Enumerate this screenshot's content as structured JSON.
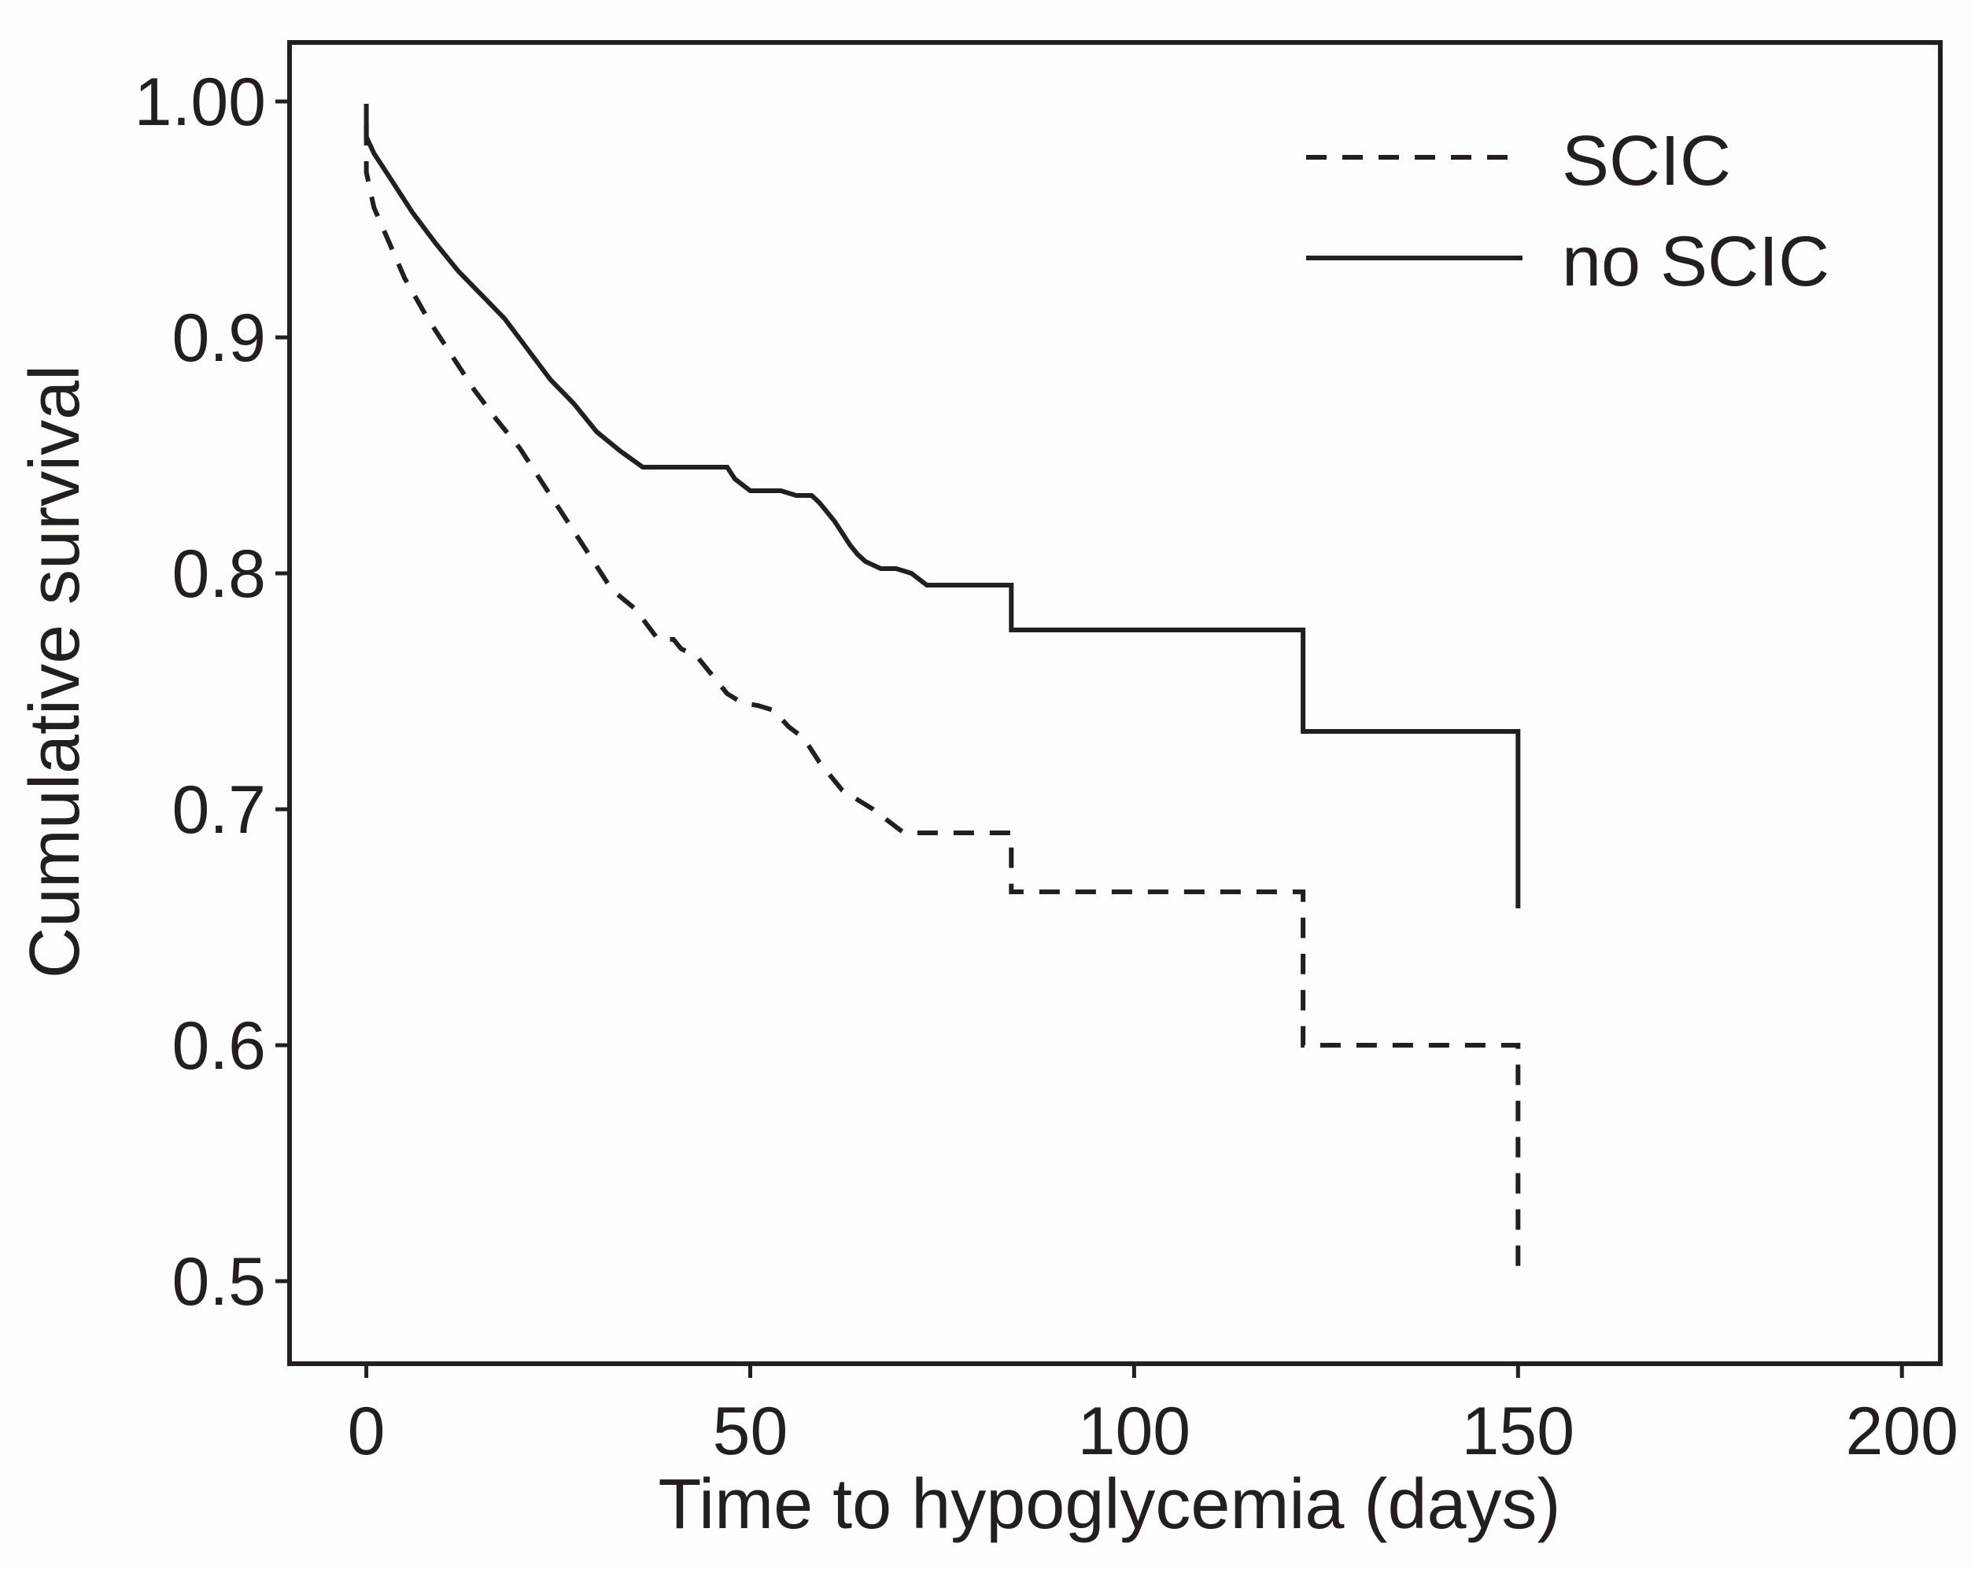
{
  "chart_data": {
    "type": "line",
    "title": "",
    "xlabel": "Time to hypoglycemia (days)",
    "ylabel": "Cumulative survival",
    "xlim": [
      -10,
      205
    ],
    "ylim": [
      0.465,
      1.025
    ],
    "xticks": [
      0,
      50,
      100,
      150,
      200
    ],
    "xtick_labels": [
      "0",
      "50",
      "100",
      "150",
      "200"
    ],
    "yticks": [
      0.5,
      0.6,
      0.7,
      0.8,
      0.9,
      1.0
    ],
    "ytick_labels": [
      "0.5",
      "0.6",
      "0.7",
      "0.8",
      "0.9",
      "1.00"
    ],
    "grid": false,
    "legend_position": "top-right",
    "colors": {
      "line": "#231f20",
      "background": "#fdfdfb"
    },
    "series": [
      {
        "name": "SCIC",
        "style": "dashed",
        "x": [
          0,
          0,
          1,
          3,
          5,
          8,
          11,
          14,
          17,
          20,
          23,
          26,
          29,
          32,
          35,
          38,
          40,
          41,
          43,
          45,
          47,
          49,
          51,
          53,
          55,
          57,
          59,
          61,
          62,
          63,
          64,
          66,
          68,
          70,
          72,
          75,
          78,
          81,
          84,
          84,
          88,
          92,
          96,
          100,
          105,
          110,
          115,
          120,
          122,
          122,
          126,
          130,
          134,
          138,
          142,
          146,
          150,
          150
        ],
        "y": [
          0.99,
          0.97,
          0.955,
          0.94,
          0.925,
          0.908,
          0.893,
          0.878,
          0.865,
          0.853,
          0.838,
          0.823,
          0.808,
          0.793,
          0.785,
          0.772,
          0.772,
          0.768,
          0.765,
          0.757,
          0.749,
          0.745,
          0.744,
          0.742,
          0.735,
          0.73,
          0.72,
          0.712,
          0.708,
          0.706,
          0.704,
          0.7,
          0.695,
          0.69,
          0.69,
          0.69,
          0.69,
          0.69,
          0.69,
          0.665,
          0.665,
          0.665,
          0.665,
          0.665,
          0.665,
          0.665,
          0.665,
          0.665,
          0.665,
          0.6,
          0.6,
          0.6,
          0.6,
          0.6,
          0.6,
          0.6,
          0.6,
          0.5
        ]
      },
      {
        "name": "no SCIC",
        "style": "solid",
        "x": [
          0,
          0,
          1,
          3,
          6,
          9,
          12,
          15,
          18,
          21,
          24,
          27,
          30,
          33,
          36,
          39,
          42,
          45,
          47,
          48,
          50,
          52,
          54,
          56,
          58,
          59,
          60,
          61,
          62,
          63,
          64,
          65,
          67,
          69,
          71,
          73,
          75,
          78,
          81,
          83,
          84,
          84,
          90,
          95,
          100,
          105,
          110,
          115,
          120,
          122,
          122,
          126,
          130,
          134,
          138,
          142,
          146,
          150,
          150
        ],
        "y": [
          0.999,
          0.985,
          0.978,
          0.968,
          0.953,
          0.94,
          0.928,
          0.918,
          0.908,
          0.895,
          0.882,
          0.872,
          0.86,
          0.852,
          0.845,
          0.845,
          0.845,
          0.845,
          0.845,
          0.84,
          0.835,
          0.835,
          0.835,
          0.833,
          0.833,
          0.83,
          0.826,
          0.822,
          0.817,
          0.812,
          0.808,
          0.805,
          0.802,
          0.802,
          0.8,
          0.795,
          0.795,
          0.795,
          0.795,
          0.795,
          0.795,
          0.776,
          0.776,
          0.776,
          0.776,
          0.776,
          0.776,
          0.776,
          0.776,
          0.776,
          0.733,
          0.733,
          0.733,
          0.733,
          0.733,
          0.733,
          0.733,
          0.733,
          0.658
        ]
      }
    ]
  }
}
